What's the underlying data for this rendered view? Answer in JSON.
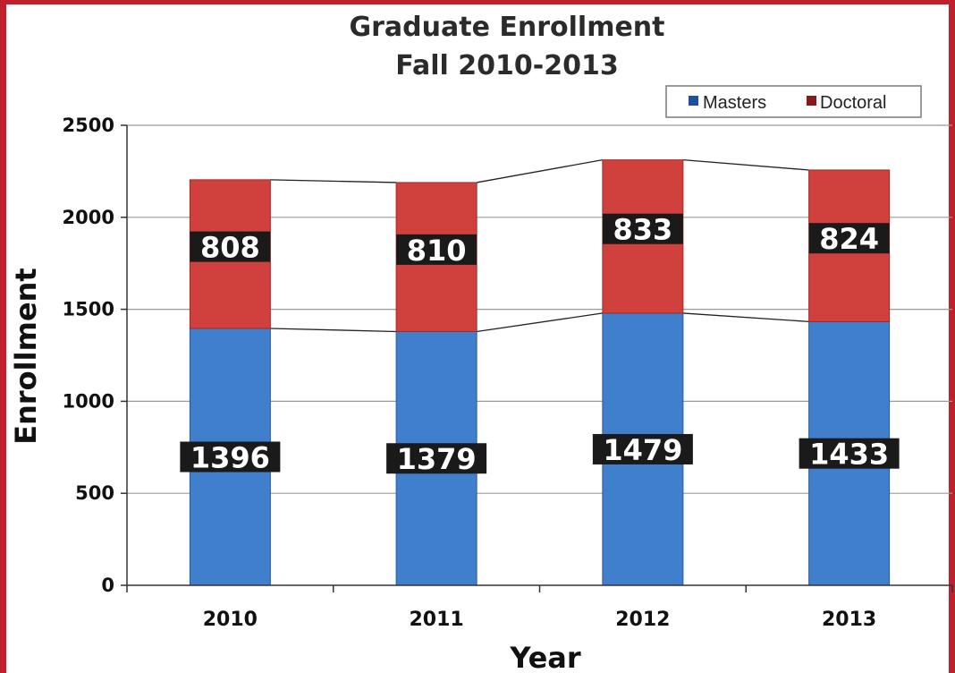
{
  "chart_data": {
    "type": "bar",
    "stacked": true,
    "title": "Graduate Enrollment",
    "subtitle": "Fall 2010-2013",
    "xlabel": "Year",
    "ylabel": "Enrollment",
    "categories": [
      "2010",
      "2011",
      "2012",
      "2013"
    ],
    "series": [
      {
        "name": "Masters",
        "values": [
          1396,
          1379,
          1479,
          1433
        ],
        "color": "#3f7fcc"
      },
      {
        "name": "Doctoral",
        "values": [
          808,
          810,
          833,
          824
        ],
        "color": "#d0413d"
      }
    ],
    "ylim": [
      0,
      2500
    ],
    "yticks": [
      "0",
      "500",
      "1000",
      "1500",
      "2000",
      "2500"
    ],
    "grid": true,
    "legend_position": "top-right",
    "series_lines": true
  }
}
